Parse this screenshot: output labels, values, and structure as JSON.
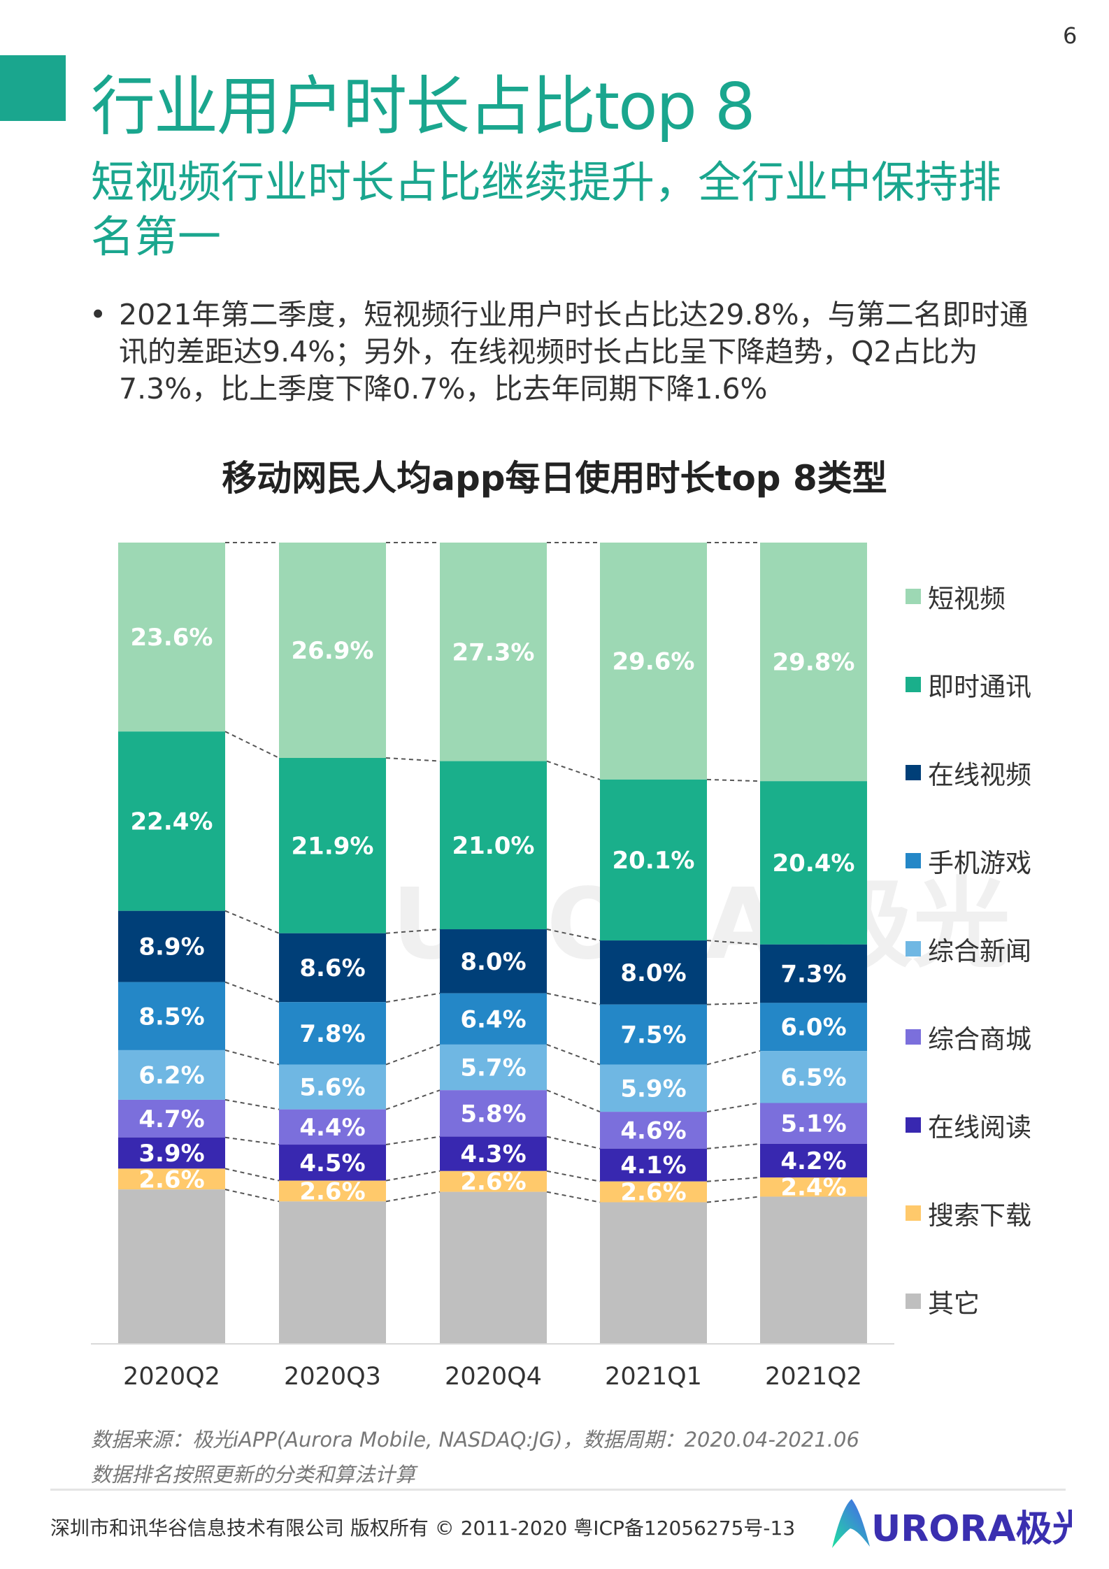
{
  "page_number": "6",
  "title": "行业用户时长占比top 8",
  "subtitle": "短视频行业时长占比继续提升，全行业中保持排名第一",
  "bullet": "2021年第二季度，短视频行业用户时长占比达29.8%，与第二名即时通讯的差距达9.4%；另外，在线视频时长占比呈下降趋势，Q2占比为7.3%，比上季度下降0.7%，比去年同期下降1.6%",
  "chart_data": {
    "type": "bar",
    "stacked": true,
    "percent": true,
    "title": "移动网民人均app每日使用时长top 8类型",
    "categories": [
      "2020Q2",
      "2020Q3",
      "2020Q4",
      "2021Q1",
      "2021Q2"
    ],
    "ylim": [
      0,
      100
    ],
    "grid": false,
    "legend_position": "right",
    "series": [
      {
        "name": "短视频",
        "color": "#9dd8b4",
        "values": [
          23.6,
          26.9,
          27.3,
          29.6,
          29.8
        ],
        "labels": [
          "23.6%",
          "26.9%",
          "27.3%",
          "29.6%",
          "29.8%"
        ]
      },
      {
        "name": "即时通讯",
        "color": "#1aaf8b",
        "values": [
          22.4,
          21.9,
          21.0,
          20.1,
          20.4
        ],
        "labels": [
          "22.4%",
          "21.9%",
          "21.0%",
          "20.1%",
          "20.4%"
        ]
      },
      {
        "name": "在线视频",
        "color": "#003f78",
        "values": [
          8.9,
          8.6,
          8.0,
          8.0,
          7.3
        ],
        "labels": [
          "8.9%",
          "8.6%",
          "8.0%",
          "8.0%",
          "7.3%"
        ]
      },
      {
        "name": "手机游戏",
        "color": "#2487c7",
        "values": [
          8.5,
          7.8,
          6.4,
          7.5,
          6.0
        ],
        "labels": [
          "8.5%",
          "7.8%",
          "6.4%",
          "7.5%",
          "6.0%"
        ]
      },
      {
        "name": "综合新闻",
        "color": "#6fb7e3",
        "values": [
          6.2,
          5.6,
          5.7,
          5.9,
          6.5
        ],
        "labels": [
          "6.2%",
          "5.6%",
          "5.7%",
          "5.9%",
          "6.5%"
        ]
      },
      {
        "name": "综合商城",
        "color": "#7b6fdc",
        "values": [
          4.7,
          4.4,
          5.8,
          4.6,
          5.1
        ],
        "labels": [
          "4.7%",
          "4.4%",
          "5.8%",
          "4.6%",
          "5.1%"
        ]
      },
      {
        "name": "在线阅读",
        "color": "#3828b0",
        "values": [
          3.9,
          4.5,
          4.3,
          4.1,
          4.2
        ],
        "labels": [
          "3.9%",
          "4.5%",
          "4.3%",
          "4.1%",
          "4.2%"
        ]
      },
      {
        "name": "搜索下载",
        "color": "#ffc96b",
        "values": [
          2.6,
          2.6,
          2.6,
          2.6,
          2.4
        ],
        "labels": [
          "2.6%",
          "2.6%",
          "2.6%",
          "2.6%",
          "2.4%"
        ]
      },
      {
        "name": "其它",
        "color": "#bfbfbf",
        "values": [
          19.2,
          17.7,
          18.9,
          17.6,
          18.3
        ],
        "labels": null
      }
    ]
  },
  "notes": {
    "source": "数据来源：极光iAPP(Aurora Mobile, NASDAQ:JG)，数据周期：2020.04-2021.06",
    "method": "数据排名按照更新的分类和算法计算"
  },
  "footer": "深圳市和讯华谷信息技术有限公司 版权所有 © 2011-2020 粤ICP备12056275号-13",
  "logo": {
    "text": "URORA极光",
    "color": "#3a2fb0"
  },
  "watermark": "URORA 极光"
}
